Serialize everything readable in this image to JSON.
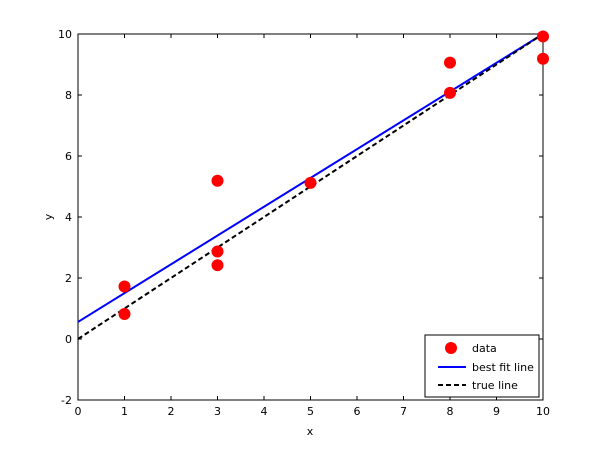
{
  "chart_data": {
    "type": "scatter",
    "xlabel": "x",
    "ylabel": "y",
    "xlim": [
      0,
      10
    ],
    "ylim": [
      -2,
      10
    ],
    "xticks": [
      0,
      1,
      2,
      3,
      4,
      5,
      6,
      7,
      8,
      9,
      10
    ],
    "yticks": [
      -2,
      0,
      2,
      4,
      6,
      8,
      10
    ],
    "grid": false,
    "legend_position": "bottom-right",
    "series": [
      {
        "name": "data",
        "kind": "scatter",
        "color": "#ff0000",
        "x": [
          1,
          1,
          3,
          3,
          3,
          5,
          8,
          8,
          10,
          10
        ],
        "y": [
          1.72,
          0.82,
          5.19,
          2.87,
          2.42,
          5.12,
          9.06,
          8.07,
          9.92,
          9.19
        ]
      },
      {
        "name": "best fit line",
        "kind": "line",
        "style": "solid",
        "color": "#0000ff",
        "x": [
          0,
          10
        ],
        "y": [
          0.56,
          10.0
        ]
      },
      {
        "name": "true line",
        "kind": "line",
        "style": "dashed",
        "color": "#000000",
        "x": [
          0,
          10
        ],
        "y": [
          0,
          10
        ]
      }
    ]
  }
}
